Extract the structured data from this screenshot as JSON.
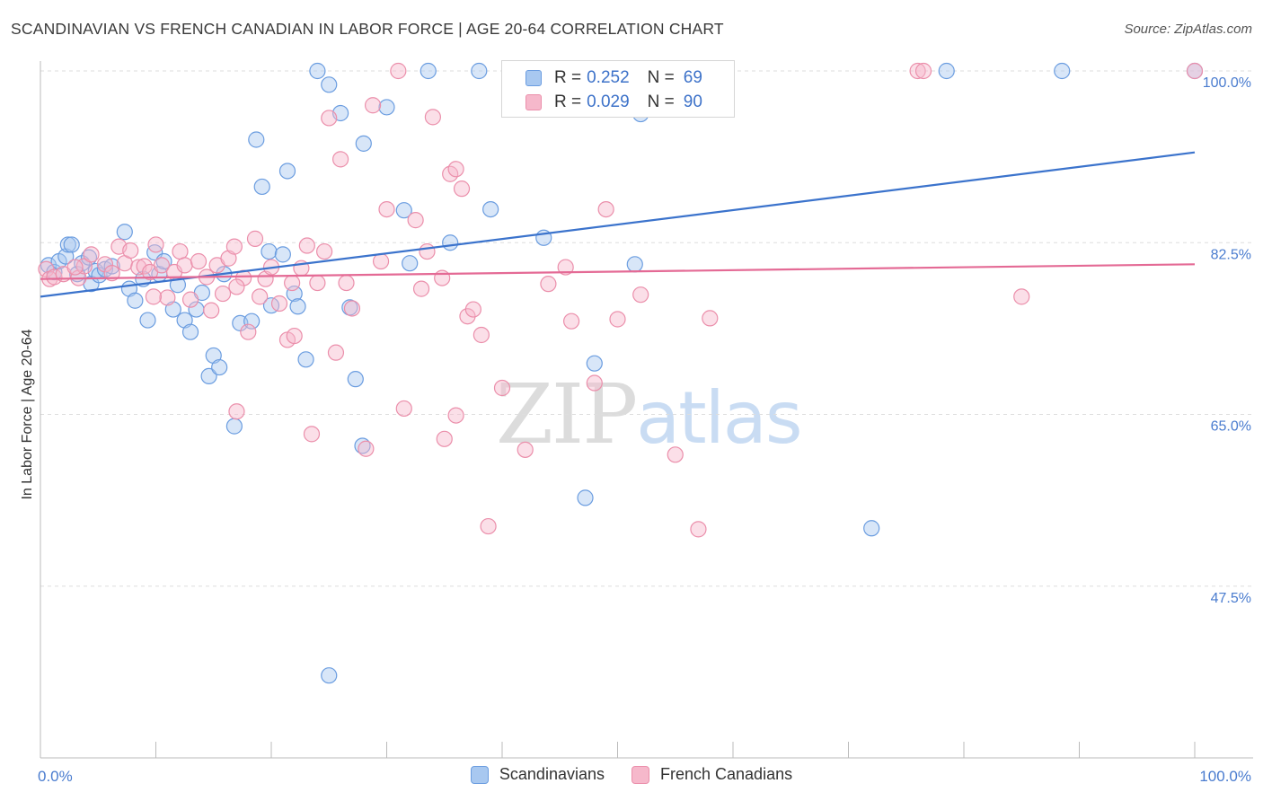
{
  "title": "SCANDINAVIAN VS FRENCH CANADIAN IN LABOR FORCE | AGE 20-64 CORRELATION CHART",
  "source": "Source: ZipAtlas.com",
  "watermark": {
    "part1": "ZIP",
    "part2": "atlas"
  },
  "legend": {
    "rows": [
      {
        "r_label": "R =",
        "r_value": "0.252",
        "n_label": "N =",
        "n_value": "69"
      },
      {
        "r_label": "R =",
        "r_value": "0.029",
        "n_label": "N =",
        "n_value": "90"
      }
    ]
  },
  "bottom_legend": [
    "Scandinavians",
    "French Canadians"
  ],
  "colors": {
    "scand_fill": "#a8c8f0",
    "scand_stroke": "#6b9de0",
    "scand_line": "#3b73cc",
    "french_fill": "#f6b8cb",
    "french_stroke": "#eb8fab",
    "french_line": "#e46a95",
    "grid": "#dedede",
    "tick_text": "#4a7ccf"
  },
  "chart_data": {
    "type": "scatter",
    "ylabel": "In Labor Force | Age 20-64",
    "xlim": [
      0,
      100
    ],
    "ylim": [
      30,
      100
    ],
    "x_tick_labels": [
      "0.0%",
      "100.0%"
    ],
    "y_ticks": [
      47.5,
      65.0,
      82.5,
      100.0
    ],
    "y_tick_labels": [
      "47.5%",
      "65.0%",
      "82.5%",
      "100.0%"
    ],
    "series": [
      {
        "name": "Scandinavians",
        "trend": {
          "x0": 0,
          "y0": 77.0,
          "x1": 100,
          "y1": 91.7
        },
        "points": [
          [
            0.7,
            80.2
          ],
          [
            1.2,
            79.5
          ],
          [
            1.6,
            80.6
          ],
          [
            2.2,
            81.1
          ],
          [
            2.4,
            82.3
          ],
          [
            2.7,
            82.3
          ],
          [
            3.2,
            79.3
          ],
          [
            3.6,
            80.4
          ],
          [
            4.2,
            81.0
          ],
          [
            4.4,
            78.3
          ],
          [
            4.8,
            79.6
          ],
          [
            5.1,
            79.2
          ],
          [
            5.6,
            79.8
          ],
          [
            6.2,
            80.1
          ],
          [
            7.3,
            83.6
          ],
          [
            7.7,
            77.8
          ],
          [
            8.2,
            76.6
          ],
          [
            8.9,
            78.8
          ],
          [
            9.3,
            74.6
          ],
          [
            9.9,
            81.5
          ],
          [
            10.3,
            79.3
          ],
          [
            10.7,
            80.6
          ],
          [
            11.5,
            75.7
          ],
          [
            11.9,
            78.2
          ],
          [
            12.5,
            74.6
          ],
          [
            13.0,
            73.4
          ],
          [
            13.5,
            75.7
          ],
          [
            14.0,
            77.4
          ],
          [
            14.6,
            68.9
          ],
          [
            15.0,
            71.0
          ],
          [
            15.5,
            69.8
          ],
          [
            15.9,
            79.3
          ],
          [
            16.8,
            63.8
          ],
          [
            17.3,
            74.3
          ],
          [
            18.3,
            74.5
          ],
          [
            18.7,
            93.0
          ],
          [
            19.2,
            88.2
          ],
          [
            19.8,
            81.6
          ],
          [
            20.0,
            76.1
          ],
          [
            21.0,
            81.3
          ],
          [
            21.4,
            89.8
          ],
          [
            22.0,
            77.3
          ],
          [
            22.3,
            76.0
          ],
          [
            23.0,
            70.6
          ],
          [
            24.0,
            100.0
          ],
          [
            25.0,
            98.6
          ],
          [
            26.0,
            95.7
          ],
          [
            26.8,
            75.9
          ],
          [
            27.3,
            68.6
          ],
          [
            27.9,
            61.8
          ],
          [
            28.0,
            92.6
          ],
          [
            30.0,
            96.3
          ],
          [
            31.5,
            85.8
          ],
          [
            32.0,
            80.4
          ],
          [
            33.6,
            100.0
          ],
          [
            35.5,
            82.5
          ],
          [
            38.0,
            100.0
          ],
          [
            39.0,
            85.9
          ],
          [
            42.0,
            100.0
          ],
          [
            43.6,
            83.0
          ],
          [
            47.2,
            56.5
          ],
          [
            48.0,
            70.2
          ],
          [
            51.0,
            100.0
          ],
          [
            51.5,
            80.3
          ],
          [
            52.0,
            95.6
          ],
          [
            72.0,
            53.4
          ],
          [
            78.5,
            100.0
          ],
          [
            88.5,
            100.0
          ],
          [
            100.0,
            100.0
          ],
          [
            25.0,
            38.4
          ]
        ]
      },
      {
        "name": "French Canadians",
        "trend": {
          "x0": 0,
          "y0": 78.8,
          "x1": 100,
          "y1": 80.3
        },
        "points": [
          [
            0.5,
            79.8
          ],
          [
            0.8,
            78.8
          ],
          [
            1.2,
            79.0
          ],
          [
            2.0,
            79.3
          ],
          [
            3.3,
            78.9
          ],
          [
            3.8,
            80.1
          ],
          [
            4.4,
            81.3
          ],
          [
            5.6,
            80.3
          ],
          [
            6.2,
            79.4
          ],
          [
            6.8,
            82.1
          ],
          [
            7.3,
            80.4
          ],
          [
            7.8,
            81.7
          ],
          [
            8.5,
            80.0
          ],
          [
            9.0,
            80.1
          ],
          [
            9.5,
            79.5
          ],
          [
            10.0,
            82.3
          ],
          [
            10.5,
            80.2
          ],
          [
            11.0,
            76.9
          ],
          [
            11.6,
            79.5
          ],
          [
            12.1,
            81.6
          ],
          [
            12.5,
            80.2
          ],
          [
            13.0,
            76.7
          ],
          [
            13.7,
            80.6
          ],
          [
            14.4,
            79.0
          ],
          [
            14.8,
            75.6
          ],
          [
            15.3,
            80.2
          ],
          [
            15.8,
            77.3
          ],
          [
            16.3,
            80.9
          ],
          [
            16.8,
            82.1
          ],
          [
            17.0,
            65.3
          ],
          [
            17.6,
            78.9
          ],
          [
            18.0,
            73.4
          ],
          [
            18.6,
            82.9
          ],
          [
            19.0,
            77.0
          ],
          [
            19.5,
            78.8
          ],
          [
            20.0,
            80.0
          ],
          [
            20.7,
            76.3
          ],
          [
            21.4,
            72.6
          ],
          [
            22.0,
            73.0
          ],
          [
            22.6,
            79.9
          ],
          [
            23.1,
            82.2
          ],
          [
            23.5,
            63.0
          ],
          [
            24.0,
            78.4
          ],
          [
            24.6,
            81.6
          ],
          [
            25.0,
            95.2
          ],
          [
            25.6,
            71.3
          ],
          [
            26.0,
            91.0
          ],
          [
            26.5,
            78.4
          ],
          [
            27.0,
            75.8
          ],
          [
            28.2,
            61.5
          ],
          [
            28.8,
            96.5
          ],
          [
            29.5,
            80.6
          ],
          [
            30.0,
            85.9
          ],
          [
            31.0,
            100.0
          ],
          [
            31.5,
            65.6
          ],
          [
            32.5,
            84.8
          ],
          [
            33.0,
            77.8
          ],
          [
            33.5,
            81.6
          ],
          [
            34.0,
            95.3
          ],
          [
            34.8,
            78.9
          ],
          [
            35.0,
            62.5
          ],
          [
            35.5,
            89.5
          ],
          [
            36.0,
            64.9
          ],
          [
            36.5,
            88.0
          ],
          [
            37.0,
            75.0
          ],
          [
            37.5,
            75.7
          ],
          [
            38.2,
            73.1
          ],
          [
            38.8,
            53.6
          ],
          [
            40.0,
            67.7
          ],
          [
            41.0,
            100.0
          ],
          [
            42.0,
            61.4
          ],
          [
            44.0,
            78.3
          ],
          [
            46.0,
            74.5
          ],
          [
            48.0,
            68.2
          ],
          [
            49.0,
            85.9
          ],
          [
            50.0,
            74.7
          ],
          [
            52.0,
            77.2
          ],
          [
            55.0,
            60.9
          ],
          [
            57.0,
            53.3
          ],
          [
            58.0,
            74.8
          ],
          [
            76.0,
            100.0
          ],
          [
            76.5,
            100.0
          ],
          [
            85.0,
            77.0
          ],
          [
            100.0,
            100.0
          ],
          [
            36.0,
            90.0
          ],
          [
            17.0,
            78.0
          ],
          [
            9.8,
            77.0
          ],
          [
            21.8,
            78.4
          ],
          [
            3.0,
            80.0
          ],
          [
            45.5,
            80.0
          ]
        ]
      }
    ]
  }
}
